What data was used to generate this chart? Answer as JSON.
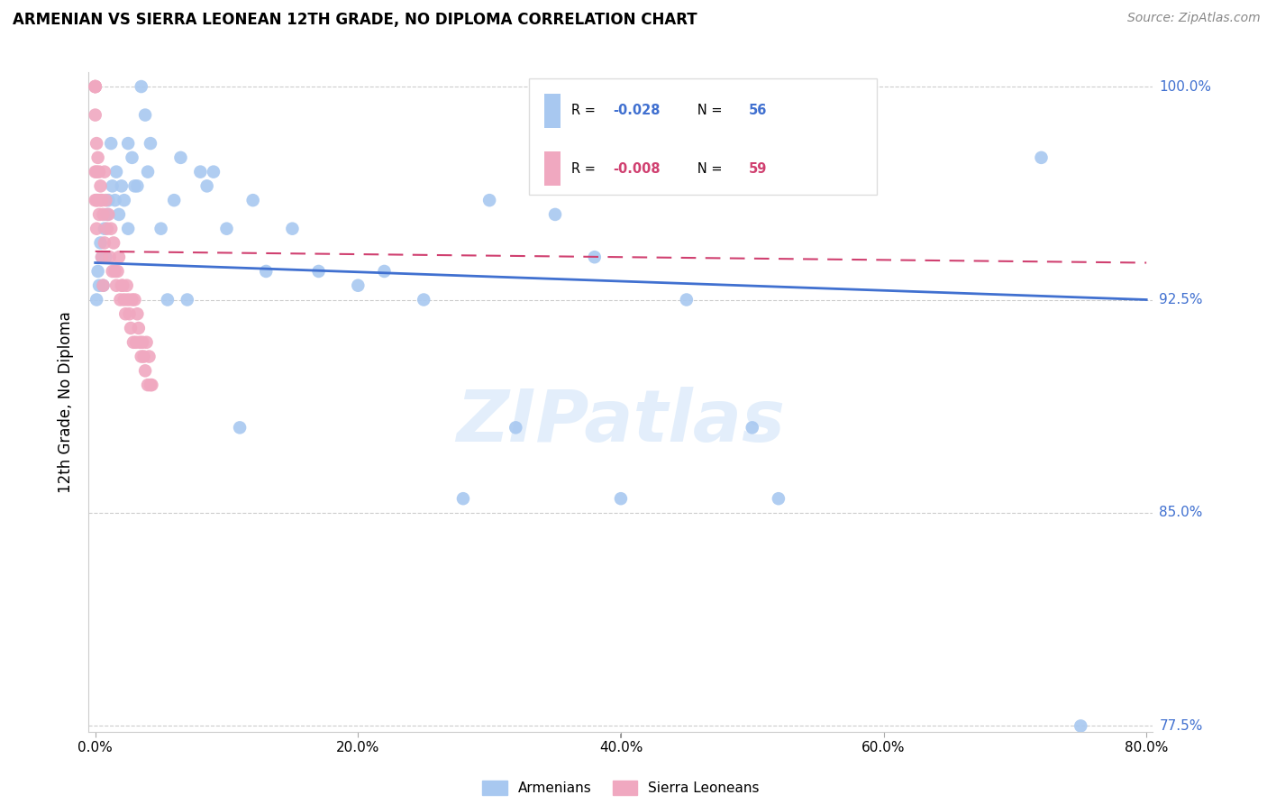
{
  "title": "ARMENIAN VS SIERRA LEONEAN 12TH GRADE, NO DIPLOMA CORRELATION CHART",
  "source": "Source: ZipAtlas.com",
  "ylabel_label": "12th Grade, No Diploma",
  "legend_labels": [
    "Armenians",
    "Sierra Leoneans"
  ],
  "legend_r_armenians": "-0.028",
  "legend_n_armenians": "56",
  "legend_r_sierra": "-0.008",
  "legend_n_sierra": "59",
  "blue_color": "#a8c8f0",
  "pink_color": "#f0a8c0",
  "blue_line_color": "#4070d0",
  "pink_line_color": "#d04070",
  "watermark_text": "ZIPatlas",
  "x_min": 0.0,
  "x_max": 0.8,
  "y_min": 0.775,
  "y_max": 1.005,
  "x_ticks": [
    0.0,
    0.2,
    0.4,
    0.6,
    0.8
  ],
  "x_tick_labels": [
    "0.0%",
    "20.0%",
    "40.0%",
    "60.0%",
    "80.0%"
  ],
  "y_ticks": [
    0.775,
    0.85,
    0.925,
    1.0
  ],
  "y_tick_labels": [
    "77.5%",
    "85.0%",
    "92.5%",
    "100.0%"
  ],
  "armenians_x": [
    0.001,
    0.002,
    0.003,
    0.004,
    0.005,
    0.006,
    0.007,
    0.008,
    0.009,
    0.01,
    0.012,
    0.013,
    0.015,
    0.016,
    0.018,
    0.02,
    0.022,
    0.025,
    0.025,
    0.028,
    0.03,
    0.032,
    0.035,
    0.038,
    0.04,
    0.042,
    0.05,
    0.055,
    0.06,
    0.065,
    0.07,
    0.08,
    0.085,
    0.09,
    0.1,
    0.11,
    0.12,
    0.13,
    0.15,
    0.17,
    0.2,
    0.22,
    0.25,
    0.28,
    0.3,
    0.32,
    0.35,
    0.38,
    0.4,
    0.42,
    0.45,
    0.5,
    0.52,
    0.55,
    0.72,
    0.75
  ],
  "armenians_y": [
    0.925,
    0.935,
    0.93,
    0.945,
    0.94,
    0.93,
    0.95,
    0.94,
    0.955,
    0.96,
    0.98,
    0.965,
    0.96,
    0.97,
    0.955,
    0.965,
    0.96,
    0.95,
    0.98,
    0.975,
    0.965,
    0.965,
    1.0,
    0.99,
    0.97,
    0.98,
    0.95,
    0.925,
    0.96,
    0.975,
    0.925,
    0.97,
    0.965,
    0.97,
    0.95,
    0.88,
    0.96,
    0.935,
    0.95,
    0.935,
    0.93,
    0.935,
    0.925,
    0.855,
    0.96,
    0.88,
    0.955,
    0.94,
    0.855,
    0.97,
    0.925,
    0.88,
    0.855,
    0.97,
    0.975,
    0.775
  ],
  "sierra_x": [
    0.0,
    0.0,
    0.0,
    0.0,
    0.0,
    0.0,
    0.0,
    0.001,
    0.001,
    0.001,
    0.001,
    0.002,
    0.002,
    0.003,
    0.003,
    0.004,
    0.004,
    0.005,
    0.005,
    0.006,
    0.006,
    0.007,
    0.007,
    0.008,
    0.009,
    0.01,
    0.011,
    0.012,
    0.013,
    0.014,
    0.015,
    0.016,
    0.017,
    0.018,
    0.019,
    0.02,
    0.021,
    0.022,
    0.023,
    0.024,
    0.025,
    0.026,
    0.027,
    0.028,
    0.029,
    0.03,
    0.031,
    0.032,
    0.033,
    0.034,
    0.035,
    0.036,
    0.037,
    0.038,
    0.039,
    0.04,
    0.041,
    0.042,
    0.043
  ],
  "sierra_y": [
    1.0,
    1.0,
    1.0,
    1.0,
    0.99,
    0.97,
    0.96,
    0.98,
    0.97,
    0.96,
    0.95,
    0.975,
    0.96,
    0.97,
    0.955,
    0.965,
    0.96,
    0.96,
    0.94,
    0.955,
    0.93,
    0.97,
    0.945,
    0.96,
    0.95,
    0.955,
    0.94,
    0.95,
    0.935,
    0.945,
    0.935,
    0.93,
    0.935,
    0.94,
    0.925,
    0.93,
    0.93,
    0.925,
    0.92,
    0.93,
    0.925,
    0.92,
    0.915,
    0.925,
    0.91,
    0.925,
    0.91,
    0.92,
    0.915,
    0.91,
    0.905,
    0.91,
    0.905,
    0.9,
    0.91,
    0.895,
    0.905,
    0.895,
    0.895
  ],
  "arm_line_x0": 0.0,
  "arm_line_x1": 0.8,
  "arm_line_y0": 0.938,
  "arm_line_y1": 0.925,
  "sle_line_x0": 0.0,
  "sle_line_x1": 0.8,
  "sle_line_y0": 0.942,
  "sle_line_y1": 0.938
}
